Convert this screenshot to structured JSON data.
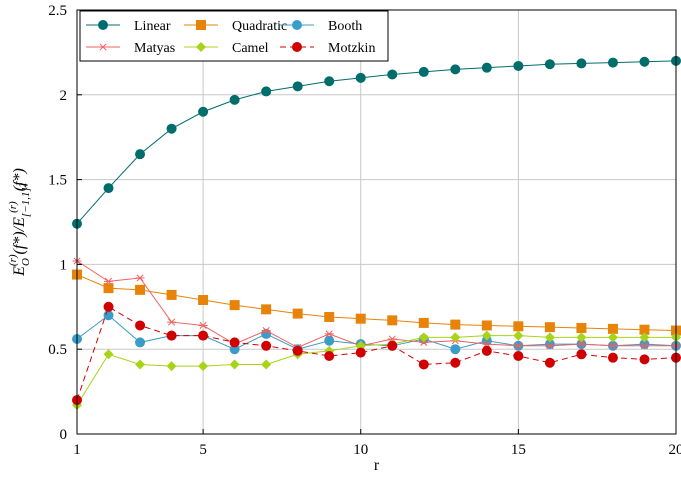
{
  "chart_data": {
    "type": "line",
    "xlabel": "r",
    "ylabel_parts": {
      "E": "E",
      "sub1": "O",
      "sup": "(r)",
      "arg": "(f*)",
      "slash": "/",
      "sub2": "[−1,1]",
      "sub2_pow": "2"
    },
    "xlim": [
      1,
      20
    ],
    "ylim": [
      0,
      2.5
    ],
    "xticks": [
      1,
      5,
      10,
      15,
      20
    ],
    "yticks": [
      0,
      0.5,
      1,
      1.5,
      2,
      2.5
    ],
    "xtick_labels": [
      "1",
      "5",
      "10",
      "15",
      "20"
    ],
    "ytick_labels": [
      "0",
      "0.5",
      "1",
      "1.5",
      "2",
      "2.5"
    ],
    "grid": true,
    "legend_position": "top-left",
    "x": [
      1,
      2,
      3,
      4,
      5,
      6,
      7,
      8,
      9,
      10,
      11,
      12,
      13,
      14,
      15,
      16,
      17,
      18,
      19,
      20
    ],
    "series": [
      {
        "name": "Linear",
        "color": "#006d6d",
        "marker": "circle",
        "dash": "solid",
        "values": [
          1.24,
          1.45,
          1.65,
          1.8,
          1.9,
          1.97,
          2.02,
          2.05,
          2.08,
          2.1,
          2.12,
          2.135,
          2.15,
          2.16,
          2.17,
          2.18,
          2.185,
          2.19,
          2.195,
          2.2
        ]
      },
      {
        "name": "Quadratic",
        "color": "#e8830a",
        "marker": "square",
        "dash": "solid",
        "values": [
          0.94,
          0.86,
          0.85,
          0.82,
          0.79,
          0.76,
          0.735,
          0.71,
          0.69,
          0.68,
          0.67,
          0.655,
          0.645,
          0.64,
          0.635,
          0.63,
          0.625,
          0.62,
          0.615,
          0.61
        ]
      },
      {
        "name": "Booth",
        "color": "#3a9cc8",
        "marker": "circle",
        "dash": "solid",
        "values": [
          0.56,
          0.7,
          0.54,
          0.58,
          0.58,
          0.5,
          0.59,
          0.5,
          0.55,
          0.53,
          0.52,
          0.56,
          0.5,
          0.55,
          0.52,
          0.53,
          0.53,
          0.52,
          0.53,
          0.52
        ]
      },
      {
        "name": "Matyas",
        "color": "#f06060",
        "marker": "star",
        "dash": "solid",
        "values": [
          1.02,
          0.9,
          0.92,
          0.66,
          0.64,
          0.53,
          0.61,
          0.51,
          0.59,
          0.52,
          0.56,
          0.54,
          0.55,
          0.53,
          0.52,
          0.52,
          0.53,
          0.52,
          0.52,
          0.52
        ]
      },
      {
        "name": "Camel",
        "color": "#a8d418",
        "marker": "diamond",
        "dash": "solid",
        "values": [
          0.17,
          0.47,
          0.41,
          0.4,
          0.4,
          0.41,
          0.41,
          0.47,
          0.49,
          0.52,
          0.53,
          0.57,
          0.57,
          0.58,
          0.58,
          0.57,
          0.57,
          0.57,
          0.57,
          0.57
        ]
      },
      {
        "name": "Motzkin",
        "color": "#d10000",
        "marker": "circle",
        "dash": "dashed",
        "values": [
          0.2,
          0.75,
          0.64,
          0.58,
          0.58,
          0.54,
          0.52,
          0.49,
          0.46,
          0.48,
          0.52,
          0.41,
          0.42,
          0.49,
          0.46,
          0.42,
          0.47,
          0.45,
          0.44,
          0.45
        ]
      }
    ]
  }
}
